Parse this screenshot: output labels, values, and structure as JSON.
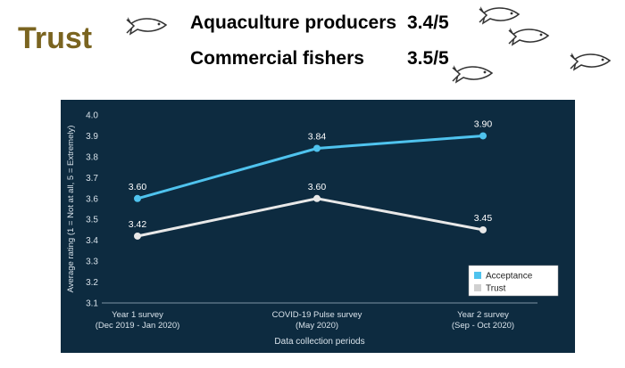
{
  "header": {
    "title": "Trust",
    "stats": [
      {
        "label": "Aquaculture producers",
        "value": "3.4/5"
      },
      {
        "label": "Commercial fishers",
        "value": "3.5/5"
      }
    ]
  },
  "icons": [
    "fish-icon"
  ],
  "colors": {
    "title": "#7a6420",
    "panel": "#0d2b40",
    "acceptance": "#4fc3ee",
    "trust": "#e8e8e8"
  },
  "chart_data": {
    "type": "line",
    "categories": [
      [
        "Year 1 survey",
        "(Dec 2019 - Jan 2020)"
      ],
      [
        "COVID-19 Pulse survey",
        "(May 2020)"
      ],
      [
        "Year 2 survey",
        "(Sep - Oct 2020)"
      ]
    ],
    "series": [
      {
        "name": "Acceptance",
        "values": [
          3.6,
          3.84,
          3.9
        ],
        "labels": [
          "3.60",
          "3.84",
          "3.90"
        ],
        "color": "#4fc3ee"
      },
      {
        "name": "Trust",
        "values": [
          3.42,
          3.6,
          3.45
        ],
        "labels": [
          "3.42",
          "3.60",
          "3.45"
        ],
        "color": "#e8e8e8"
      }
    ],
    "ylim": [
      3.1,
      4.0
    ],
    "yticks": [
      "3.1",
      "3.2",
      "3.3",
      "3.4",
      "3.5",
      "3.6",
      "3.7",
      "3.8",
      "3.9",
      "4.0"
    ],
    "xlabel": "Data collection periods",
    "ylabel": "Average rating (1 = Not at all, 5 = Extremely)",
    "grid": false,
    "legend": "bottom-right"
  }
}
